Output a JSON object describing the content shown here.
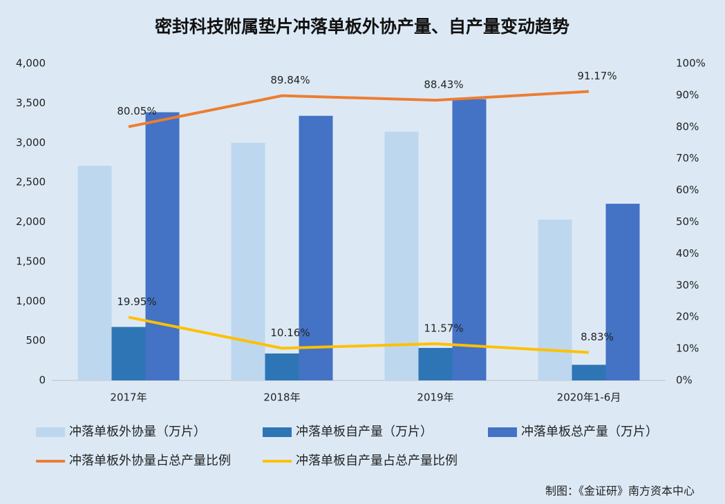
{
  "chart_data": {
    "type": "bar",
    "title": "密封科技附属垫片冲落单板外协产量、自产量变动趋势",
    "source": "制图：《金证研》南方资本中心",
    "categories": [
      "2017年",
      "2018年",
      "2019年",
      "2020年1-6月"
    ],
    "series": [
      {
        "name": "冲落单板外协量（万片）",
        "type": "bar",
        "color": "#bdd7ee",
        "values": [
          2710,
          3000,
          3140,
          2030
        ]
      },
      {
        "name": "冲落单板自产量（万片）",
        "type": "bar",
        "color": "#2e75b6",
        "values": [
          675,
          340,
          410,
          197
        ]
      },
      {
        "name": "冲落单板总产量（万片）",
        "type": "bar",
        "color": "#4472c4",
        "values": [
          3385,
          3340,
          3550,
          2230
        ]
      },
      {
        "name": "冲落单板外协量占总产量比例",
        "type": "line",
        "axis": "y2",
        "color": "#ed7d31",
        "values": [
          80.05,
          89.84,
          88.43,
          91.17
        ],
        "value_labels": [
          "80.05%",
          "89.84%",
          "88.43%",
          "91.17%"
        ]
      },
      {
        "name": "冲落单板自产量占总产量比例",
        "type": "line",
        "axis": "y2",
        "color": "#ffc000",
        "values": [
          19.95,
          10.16,
          11.57,
          8.83
        ],
        "value_labels": [
          "19.95%",
          "10.16%",
          "11.57%",
          "8.83%"
        ]
      }
    ],
    "ylim": [
      0,
      4000
    ],
    "yticks": [
      0,
      500,
      {
        "value": 1000,
        "label": "1,000"
      },
      {
        "value": 1500,
        "label": "1,500"
      },
      {
        "value": 2000,
        "label": "2,000"
      },
      {
        "value": 2500,
        "label": "2,500"
      },
      {
        "value": 3000,
        "label": "3,000"
      },
      {
        "value": 3500,
        "label": "3,500"
      },
      {
        "value": 4000,
        "label": "4,000"
      }
    ],
    "y2lim": [
      0,
      100
    ],
    "y2ticks": [
      {
        "value": 0,
        "label": "0%"
      },
      {
        "value": 10,
        "label": "10%"
      },
      {
        "value": 20,
        "label": "20%"
      },
      {
        "value": 30,
        "label": "30%"
      },
      {
        "value": 40,
        "label": "40%"
      },
      {
        "value": 50,
        "label": "50%"
      },
      {
        "value": 60,
        "label": "60%"
      },
      {
        "value": 70,
        "label": "70%"
      },
      {
        "value": 80,
        "label": "80%"
      },
      {
        "value": 90,
        "label": "90%"
      },
      {
        "value": 100,
        "label": "100%"
      }
    ],
    "grid": false,
    "legend": "bottom"
  }
}
